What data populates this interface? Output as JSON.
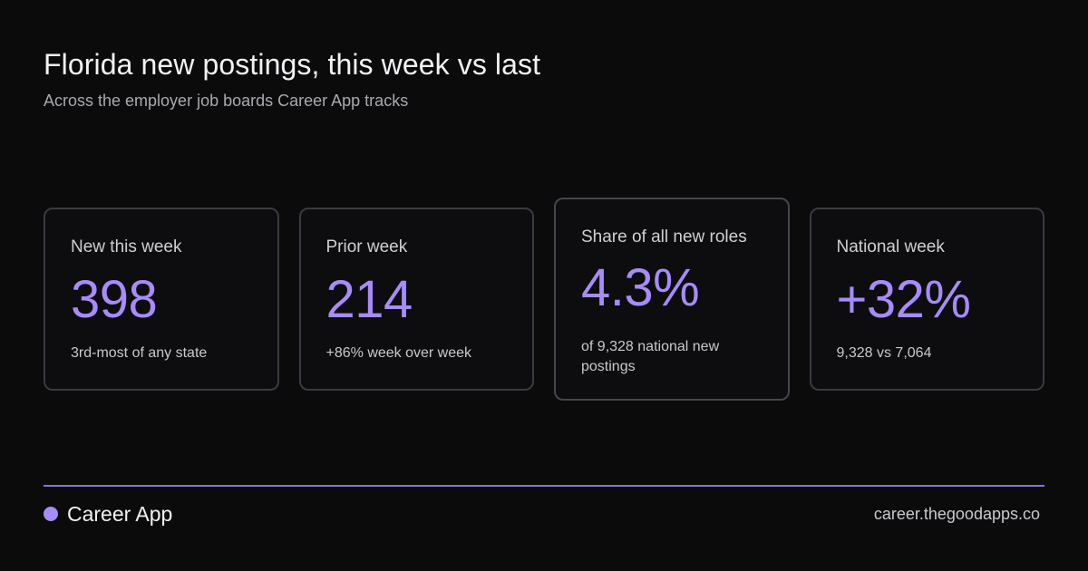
{
  "header": {
    "title": "Florida new postings, this week vs last",
    "subtitle": "Across the employer job boards Career App tracks"
  },
  "cards": [
    {
      "label": "New this week",
      "value": "398",
      "note": "3rd-most of any state"
    },
    {
      "label": "Prior week",
      "value": "214",
      "note": "+86% week over week"
    },
    {
      "label": "Share of all new roles",
      "value": "4.3%",
      "note": "of 9,328 national new postings"
    },
    {
      "label": "National week",
      "value": "+32%",
      "note": "9,328 vs 7,064"
    }
  ],
  "footer": {
    "brand": "Career App",
    "url": "career.thegoodapps.co"
  },
  "colors": {
    "background": "#0b0b0c",
    "accent": "#a78bfa",
    "card_border": "#3a3a40"
  }
}
